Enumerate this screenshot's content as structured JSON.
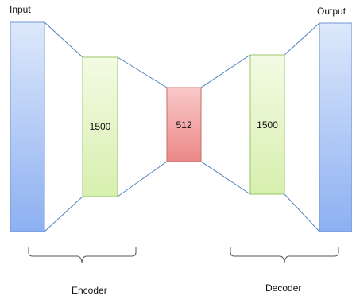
{
  "labels": {
    "input": "Input",
    "output": "Output",
    "encoder": "Encoder",
    "decoder": "Decoder"
  },
  "layers": {
    "encoder_hidden": "1500",
    "bottleneck": "512",
    "decoder_hidden": "1500"
  },
  "colors": {
    "input_output_fill_top": "#dbe7fb",
    "input_output_fill_bottom": "#8fb2f2",
    "hidden_fill_top": "#f2fbe2",
    "hidden_fill_bottom": "#d8f0b0",
    "bottleneck_fill_top": "#f9c6c6",
    "bottleneck_fill_bottom": "#ee8a8a",
    "connector": "#4f81bd",
    "brace": "#555555"
  }
}
